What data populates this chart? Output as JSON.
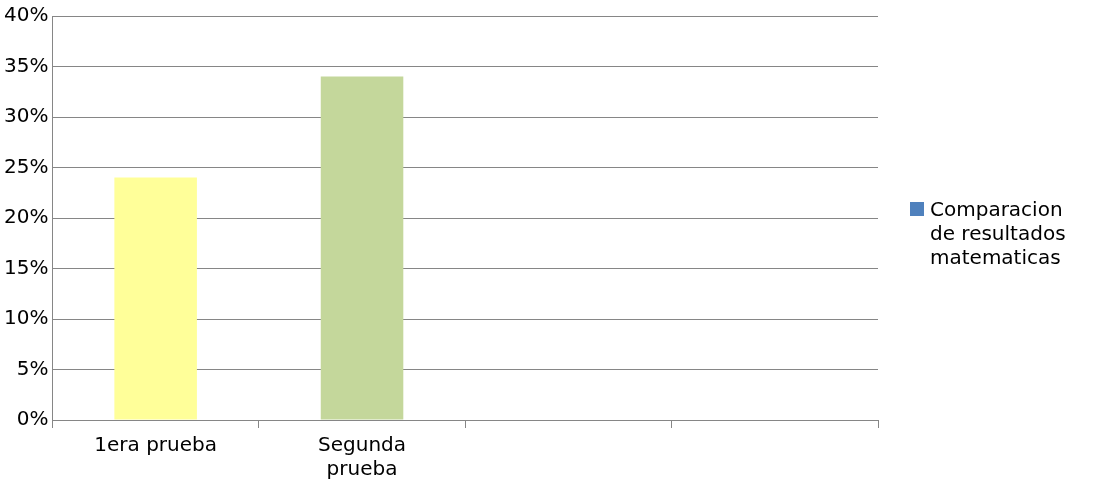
{
  "chart_data": {
    "type": "bar",
    "categories": [
      "1era prueba",
      "Segunda prueba",
      null,
      null
    ],
    "series": [
      {
        "name": "Comparacion de resultados matematicas",
        "color": "#4f81bd",
        "colors": [
          "#ffff99",
          "#c4d79b",
          null,
          null
        ],
        "values": [
          24,
          34,
          null,
          null
        ]
      }
    ],
    "ylim": [
      0,
      40
    ],
    "yticks": [
      {
        "value": 0,
        "label": "0%"
      },
      {
        "value": 5,
        "label": "5%"
      },
      {
        "value": 10,
        "label": "10%"
      },
      {
        "value": 15,
        "label": "15%"
      },
      {
        "value": 20,
        "label": "20%"
      },
      {
        "value": 25,
        "label": "25%"
      },
      {
        "value": 30,
        "label": "30%"
      },
      {
        "value": 35,
        "label": "35%"
      },
      {
        "value": 40,
        "label": "40%"
      }
    ],
    "grid": "y",
    "legend": "right"
  }
}
